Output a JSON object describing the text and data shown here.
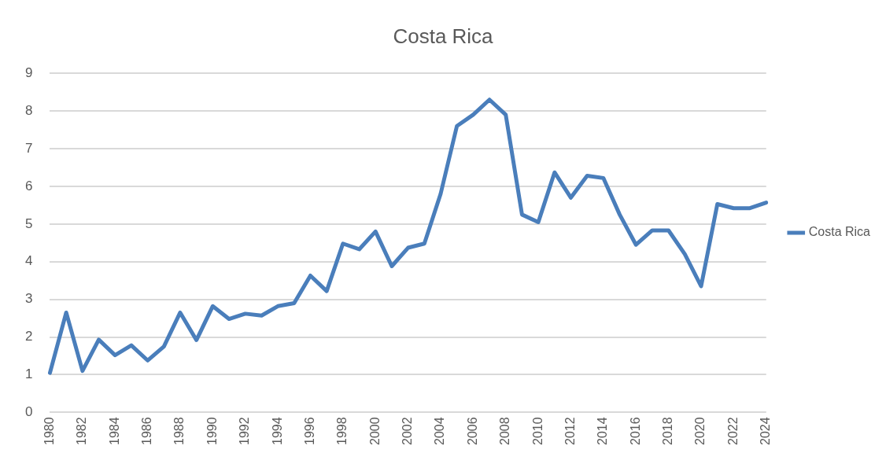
{
  "chart_data": {
    "type": "line",
    "title": "Costa Rica",
    "categories": [
      "1980",
      null,
      "1982",
      null,
      "1984",
      null,
      "1986",
      null,
      "1988",
      null,
      "1990",
      null,
      "1992",
      null,
      "1994",
      null,
      "1996",
      null,
      "1998",
      null,
      "2000",
      null,
      "2002",
      null,
      "2004",
      null,
      "2006",
      null,
      "2008",
      null,
      "2010",
      null,
      "2012",
      null,
      "2014",
      null,
      "2016",
      null,
      "2018",
      null,
      "2020",
      null,
      "2022",
      null,
      "2024"
    ],
    "series": [
      {
        "name": "Costa Rica",
        "color": "#4a7ebb",
        "values": [
          1.05,
          2.65,
          1.1,
          1.93,
          1.52,
          1.78,
          1.38,
          1.75,
          2.65,
          1.92,
          2.82,
          2.48,
          2.62,
          2.57,
          2.82,
          2.9,
          3.63,
          3.22,
          4.48,
          4.33,
          4.8,
          3.88,
          4.37,
          4.48,
          5.8,
          7.6,
          7.9,
          8.3,
          7.9,
          5.25,
          5.05,
          6.37,
          5.7,
          6.28,
          6.22,
          5.25,
          4.45,
          4.83,
          4.83,
          4.2,
          3.35,
          5.53,
          5.42,
          5.42,
          5.57
        ]
      }
    ],
    "ylim": [
      0,
      9
    ],
    "yticks": [
      0,
      1,
      2,
      3,
      4,
      5,
      6,
      7,
      8,
      9
    ],
    "grid": "y",
    "legend": "right",
    "marker": "none",
    "line_style": "solid"
  }
}
